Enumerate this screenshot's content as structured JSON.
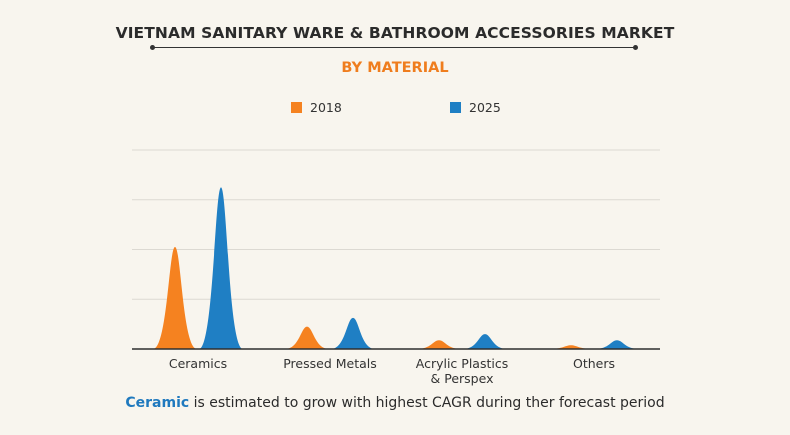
{
  "title": "VIETNAM SANITARY WARE & BATHROOM ACCESSORIES MARKET",
  "subtitle": "BY MATERIAL",
  "footer": {
    "highlight": "Ceramic",
    "rest": " is estimated to grow with highest CAGR during ther forecast period"
  },
  "colors": {
    "orange": "#f58220",
    "blue": "#1f7fc4",
    "subtitle": "#ef7d1e",
    "highlight": "#1f79be"
  },
  "chart_data": {
    "type": "area",
    "series": [
      {
        "name": "2018",
        "color": "#f58220",
        "values": [
          41,
          9,
          3.5,
          1.5
        ]
      },
      {
        "name": "2025",
        "color": "#1f7fc4",
        "values": [
          65,
          12.5,
          6,
          3.5
        ]
      }
    ],
    "categories": [
      {
        "label": [
          "Ceramics"
        ]
      },
      {
        "label": [
          "Pressed Metals"
        ]
      },
      {
        "label": [
          "Acrylic Plastics",
          "& Perspex"
        ]
      },
      {
        "label": [
          "Others"
        ]
      }
    ],
    "ylim": [
      0,
      80
    ],
    "grid": true,
    "legend_position": "top-center"
  }
}
